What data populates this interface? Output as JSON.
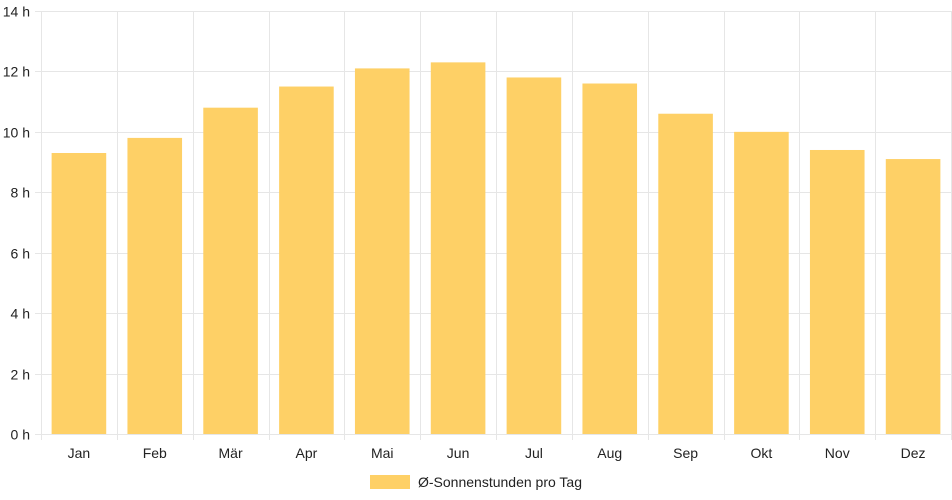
{
  "chart_data": {
    "type": "bar",
    "categories": [
      "Jan",
      "Feb",
      "Mär",
      "Apr",
      "Mai",
      "Jun",
      "Jul",
      "Aug",
      "Sep",
      "Okt",
      "Nov",
      "Dez"
    ],
    "series": [
      {
        "name": "Ø-Sonnenstunden pro Tag",
        "values": [
          9.3,
          9.8,
          10.8,
          11.5,
          12.1,
          12.3,
          11.8,
          11.6,
          10.6,
          10.0,
          9.4,
          9.1
        ]
      }
    ],
    "y_unit": " h",
    "ylim": [
      0,
      14
    ],
    "y_ticks": [
      0,
      2,
      4,
      6,
      8,
      10,
      12,
      14
    ],
    "grid": true,
    "legend_position": "bottom",
    "colors": {
      "bar": "#fed066",
      "grid": "#e6e6e6",
      "text": "#222222"
    }
  },
  "legend": {
    "label": "Ø-Sonnenstunden pro Tag"
  }
}
